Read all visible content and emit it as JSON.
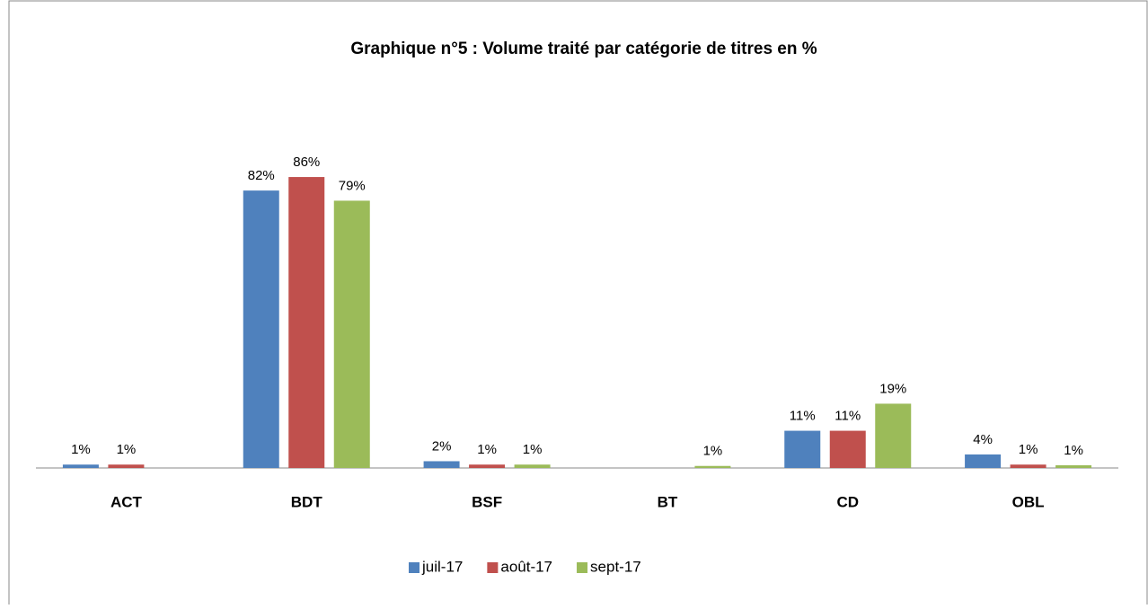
{
  "chart_data": {
    "type": "bar",
    "title": "Graphique n°5 : Volume traité par catégorie de titres en %",
    "categories": [
      "ACT",
      "BDT",
      "BSF",
      "BT",
      "CD",
      "OBL"
    ],
    "series": [
      {
        "name": "juil-17",
        "color": "#4f81bd",
        "values": [
          1,
          82,
          2,
          null,
          11,
          4
        ],
        "value_labels": [
          "1%",
          "82%",
          "2%",
          null,
          "11%",
          "4%"
        ]
      },
      {
        "name": "août-17",
        "color": "#c0504d",
        "values": [
          1,
          86,
          1,
          null,
          11,
          1
        ],
        "value_labels": [
          "1%",
          "86%",
          "1%",
          null,
          "11%",
          "1%"
        ]
      },
      {
        "name": "sept-17",
        "color": "#9bbb59",
        "values": [
          null,
          79,
          1,
          0.6,
          19,
          0.8
        ],
        "value_labels": [
          null,
          "79%",
          "1%",
          "1%",
          "19%",
          "1%"
        ]
      }
    ],
    "ylim": [
      0,
      90
    ],
    "legend": "bottom"
  }
}
